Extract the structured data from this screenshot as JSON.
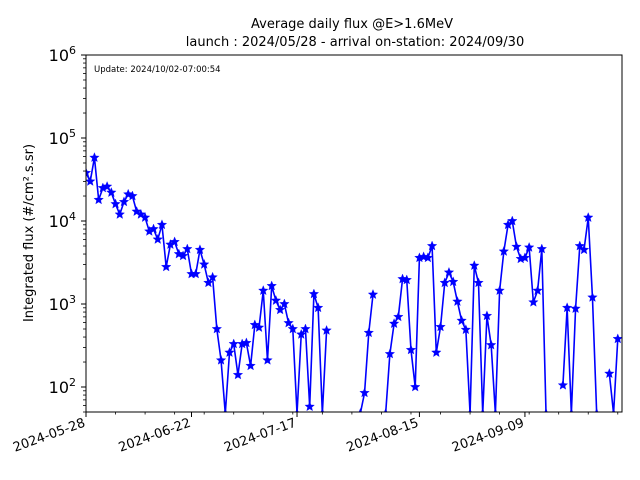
{
  "chart_data": {
    "type": "line",
    "title": "Average daily flux @E>1.6MeV",
    "subtitle": "launch : 2024/05/28 - arrival on-station: 2024/09/30",
    "ylabel": "Integrated flux (#/cm².s.sr)",
    "xlabel": "",
    "annotation": "Update: 2024/10/02-07:00:54",
    "y_scale": "log",
    "ylim": [
      50,
      1000000
    ],
    "xlim": [
      "2024-05-28",
      "2024-10-02"
    ],
    "x_tick_labels": [
      "2024-05-28",
      "2024-06-22",
      "2024-07-17",
      "2024-08-15",
      "2024-09-09"
    ],
    "y_ticks": [
      {
        "value": 100,
        "mantissa": "10",
        "exp": "2"
      },
      {
        "value": 1000,
        "mantissa": "10",
        "exp": "3"
      },
      {
        "value": 10000,
        "mantissa": "10",
        "exp": "4"
      },
      {
        "value": 100000,
        "mantissa": "10",
        "exp": "5"
      },
      {
        "value": 1000000,
        "mantissa": "10",
        "exp": "6"
      }
    ],
    "grid": false,
    "legend": "none",
    "series": [
      {
        "color": "#0000ff",
        "marker": "star",
        "x": [
          "2024-05-28",
          "2024-05-29",
          "2024-05-30",
          "2024-05-31",
          "2024-06-01",
          "2024-06-02",
          "2024-06-03",
          "2024-06-04",
          "2024-06-05",
          "2024-06-06",
          "2024-06-07",
          "2024-06-08",
          "2024-06-09",
          "2024-06-10",
          "2024-06-11",
          "2024-06-12",
          "2024-06-13",
          "2024-06-14",
          "2024-06-15",
          "2024-06-16",
          "2024-06-17",
          "2024-06-18",
          "2024-06-19",
          "2024-06-20",
          "2024-06-21",
          "2024-06-22",
          "2024-06-23",
          "2024-06-24",
          "2024-06-25",
          "2024-06-26",
          "2024-06-27",
          "2024-06-28",
          "2024-06-29",
          "2024-06-30",
          "2024-07-01",
          "2024-07-02",
          "2024-07-03",
          "2024-07-04",
          "2024-07-05",
          "2024-07-06",
          "2024-07-07",
          "2024-07-08",
          "2024-07-09",
          "2024-07-10",
          "2024-07-11",
          "2024-07-12",
          "2024-07-13",
          "2024-07-14",
          "2024-07-15",
          "2024-07-16",
          "2024-07-17",
          "2024-07-18",
          "2024-07-19",
          "2024-07-20",
          "2024-07-21",
          "2024-07-22",
          "2024-07-23",
          "2024-07-24",
          "2024-07-25",
          "2024-07-26",
          "2024-07-27",
          "2024-07-28",
          "2024-07-29",
          "2024-07-30",
          "2024-07-31",
          "2024-08-01",
          "2024-08-02",
          "2024-08-03",
          "2024-08-04",
          "2024-08-05",
          "2024-08-06",
          "2024-08-07",
          "2024-08-08",
          "2024-08-09",
          "2024-08-10",
          "2024-08-11",
          "2024-08-12",
          "2024-08-13",
          "2024-08-14",
          "2024-08-15",
          "2024-08-16",
          "2024-08-17",
          "2024-08-18",
          "2024-08-19",
          "2024-08-20",
          "2024-08-21",
          "2024-08-22",
          "2024-08-23",
          "2024-08-24",
          "2024-08-25",
          "2024-08-26",
          "2024-08-27",
          "2024-08-28",
          "2024-08-29",
          "2024-08-30",
          "2024-08-31",
          "2024-09-01",
          "2024-09-02",
          "2024-09-03",
          "2024-09-04",
          "2024-09-05",
          "2024-09-06",
          "2024-09-07",
          "2024-09-08",
          "2024-09-09",
          "2024-09-10",
          "2024-09-11",
          "2024-09-12",
          "2024-09-13",
          "2024-09-14",
          "2024-09-15",
          "2024-09-16",
          "2024-09-17",
          "2024-09-18",
          "2024-09-19",
          "2024-09-20",
          "2024-09-21",
          "2024-09-22",
          "2024-09-23",
          "2024-09-24",
          "2024-09-25",
          "2024-09-26",
          "2024-09-27",
          "2024-09-28",
          "2024-09-29",
          "2024-09-30",
          "2024-10-01"
        ],
        "y": [
          38000,
          30000,
          58000,
          18000,
          25000,
          26000,
          22000,
          16000,
          12000,
          17000,
          21000,
          20000,
          13000,
          12000,
          11000,
          7500,
          8000,
          6000,
          9000,
          2800,
          5200,
          5600,
          4000,
          3800,
          4600,
          2300,
          2300,
          4500,
          3000,
          1800,
          2100,
          500,
          210,
          48,
          260,
          330,
          140,
          330,
          340,
          180,
          560,
          520,
          1450,
          210,
          1650,
          1100,
          850,
          1000,
          590,
          500,
          48,
          430,
          500,
          58,
          1320,
          900,
          48,
          480,
          null,
          null,
          null,
          null,
          null,
          null,
          null,
          48,
          85,
          450,
          1300,
          null,
          null,
          48,
          250,
          580,
          700,
          2000,
          1950,
          280,
          100,
          3600,
          3700,
          3600,
          5000,
          260,
          530,
          1800,
          2400,
          1850,
          1070,
          630,
          490,
          48,
          2900,
          1800,
          48,
          720,
          320,
          48,
          1450,
          4300,
          9000,
          10000,
          4900,
          3500,
          3600,
          4800,
          1050,
          1450,
          4600,
          48,
          null,
          null,
          null,
          105,
          900,
          48,
          880,
          5000,
          4500,
          11000,
          1200,
          48,
          null,
          null,
          145,
          48,
          380
        ]
      }
    ]
  }
}
